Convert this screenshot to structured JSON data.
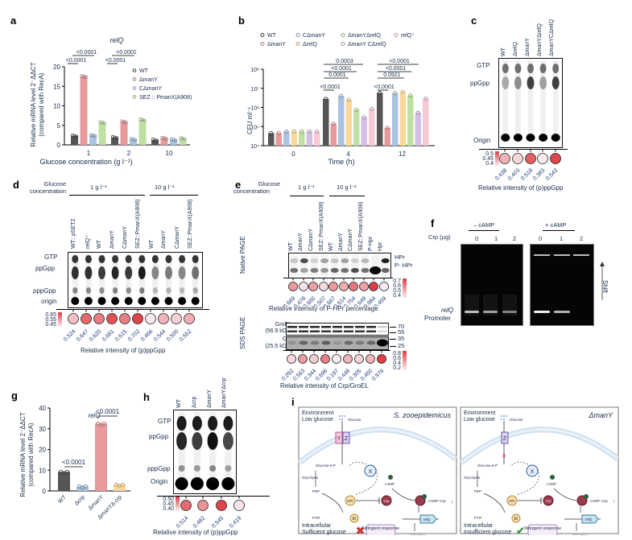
{
  "panels": {
    "a": "a",
    "b": "b",
    "c": "c",
    "d": "d",
    "e": "e",
    "f": "f",
    "g": "g",
    "h": "h",
    "i": "i"
  },
  "chart_data": [
    {
      "id": "a",
      "type": "bar",
      "title": "relQ",
      "xlabel": "Glucose concentration (g l⁻¹)",
      "ylabel": "Relative mRNA level 2⁻ΔΔCT",
      "ylabel2": "(compared with RecA)",
      "ylim": [
        0,
        20
      ],
      "yticks": [
        0,
        5,
        10,
        15,
        20
      ],
      "categories": [
        "1",
        "2",
        "10"
      ],
      "series": [
        {
          "name": "WT",
          "color": "#555555",
          "values": [
            2.3,
            1.9,
            1.2
          ]
        },
        {
          "name": "ΔmanY",
          "color": "#e79a9c",
          "values": [
            17.5,
            5.9,
            1.7
          ]
        },
        {
          "name": "CΔmanY",
          "color": "#a8c4e2",
          "values": [
            2.4,
            1.4,
            1.3
          ]
        },
        {
          "name": "SEZ :: PmanX(A908)",
          "color": "#bfe0a4",
          "values": [
            5.7,
            6.4,
            1.6
          ]
        }
      ],
      "pvalues": [
        "<0.0001",
        "<0.0001",
        "<0.0001",
        "<0.0001"
      ]
    },
    {
      "id": "b",
      "type": "bar",
      "title": "",
      "xlabel": "Time (h)",
      "ylabel": "CFU ml⁻¹",
      "yscale": "log",
      "ylim": [
        10000,
        100000000
      ],
      "yticks": [
        "10⁴",
        "10⁵",
        "10⁶",
        "10⁷",
        "10⁸"
      ],
      "categories": [
        "0",
        "4",
        "12"
      ],
      "series": [
        {
          "name": "WT",
          "color": "#555555",
          "values": [
            45000,
            2800000,
            5800000
          ]
        },
        {
          "name": "ΔmanY",
          "color": "#e79a9c",
          "values": [
            45000,
            140000,
            85000
          ]
        },
        {
          "name": "CΔmanY",
          "color": "#a8c4e2",
          "values": [
            55000,
            4000000,
            5500000
          ]
        },
        {
          "name": "ΔrelQ",
          "color": "#fbd99a",
          "values": [
            55000,
            2500000,
            6500000
          ]
        },
        {
          "name": "ΔmanYΔrelQ",
          "color": "#bfe0a4",
          "values": [
            55000,
            750000,
            4200000
          ]
        },
        {
          "name": "ΔmanY CΔrelQ",
          "color": "#d6bfe6",
          "values": [
            55000,
            300000,
            520000
          ]
        },
        {
          "name": "relQ⁺",
          "color": "#f6c9d4",
          "values": [
            55000,
            850000,
            2900000
          ]
        }
      ],
      "legend_order": [
        "WT",
        "CΔmanY",
        "ΔmanYΔrelQ",
        "relQ⁺",
        "ΔmanY",
        "ΔrelQ",
        "ΔmanY CΔrelQ"
      ],
      "pvalues_4h": [
        "0.0003",
        "<0.0001",
        "0.0001",
        "<0.0001"
      ],
      "pvalues_12h": [
        "<0.0001",
        "<0.0001",
        "0.0921",
        "<0.0001"
      ]
    },
    {
      "id": "g",
      "type": "bar",
      "title": "relQ",
      "ylabel": "Relative mRNA level 2⁻ΔΔCT",
      "ylabel2": "(compared with RecA)",
      "ylim": [
        0,
        40
      ],
      "yticks": [
        0,
        10,
        20,
        30,
        40
      ],
      "categories": [
        "WT",
        "Δcrp",
        "ΔmanY",
        "ΔmanYΔ crp"
      ],
      "colors": [
        "#555555",
        "#a8c4e2",
        "#e79a9c",
        "#fbd99a"
      ],
      "values": [
        9.2,
        2.2,
        32.5,
        3.0
      ],
      "pvalues": [
        "<0.0001",
        "<0.0001"
      ]
    }
  ],
  "panel_c": {
    "lanes": [
      "WT",
      "ΔrelQ",
      "ΔmanY",
      "ΔmanYΔrelQ",
      "ΔmanYCΔrelQ"
    ],
    "bands": [
      "GTP",
      "ppGpp",
      "Origin"
    ],
    "values": [
      "0.438",
      "0.403",
      "0.518",
      "0.383",
      "0.543"
    ],
    "scale": [
      "0.5",
      "0.45",
      "0.4"
    ],
    "caption": "Relative intensity of (p)ppGpp"
  },
  "panel_d": {
    "header_left": "Glucose",
    "header_left2": "concentration",
    "group1": "1 g l⁻¹",
    "group2": "10 g l⁻¹",
    "lanes": [
      "WT:: pSET2",
      "relQ⁺",
      "WT",
      "ΔmanY",
      "CΔmanY",
      "SEZ::PmanX(A908)",
      "WT",
      "ΔmanY",
      "CΔmanY",
      "SEZ::PmanX(A908)"
    ],
    "bands": [
      "GTP",
      "ppGpp",
      "pppGpp",
      "origin"
    ],
    "values": [
      "0.524",
      "0.647",
      "0.620",
      "0.681",
      "0.615",
      "0.702",
      "0.466",
      "0.544",
      "0.500",
      "0.552"
    ],
    "scale": [
      "0.65",
      "0.55",
      "0.45"
    ],
    "caption": "Relative intensity of (p)ppGpp"
  },
  "panel_e": {
    "header_left": "Glucose",
    "header_left2": "concentration",
    "group1": "1 g l⁻¹",
    "group2": "10 g l⁻¹",
    "lanes": [
      "WT",
      "ΔmanY",
      "CΔmanY",
      "SEZ::PmanX(A908)",
      "WT",
      "ΔmanY",
      "CΔmanY",
      "SEZ::PmanX(A908)",
      "P-Hpr",
      "Hpr"
    ],
    "native_label": "Native PAGE",
    "native_bands": [
      "HPr",
      "P- HPr"
    ],
    "native_values": [
      "0.669",
      "0.478",
      "0.650",
      "0.507",
      "0.667",
      "0.614",
      "0.754",
      "0.649",
      "0.984",
      "0.459"
    ],
    "native_scale": [
      "0.7",
      "0.6",
      "0.5",
      "0.4"
    ],
    "native_caption": "Relative intensity of P-HPr percentage",
    "sds_label": "SDS PAGE",
    "sds_bands": [
      "GroEL",
      "(56.9 kDa)",
      "Crp",
      "(25.5 kDa)"
    ],
    "sds_markers": [
      "70",
      "55",
      "35",
      "25"
    ],
    "sds_values": [
      "0.292",
      "0.563",
      "0.344",
      "0.696",
      "0.197",
      "0.448",
      "0.305",
      "0.450",
      "0.976"
    ],
    "sds_scale": [
      "0.8",
      "0.6",
      "0.4",
      "0.2"
    ],
    "sds_caption": "Relative intensity of Crp/GroEL"
  },
  "panel_f": {
    "minus": "– cAMP",
    "plus": "+ cAMP",
    "crp_label": "Crp (µg)",
    "doses": [
      "0",
      "1",
      "2",
      "0",
      "1",
      "2"
    ],
    "band_label1": "relQ",
    "band_label2": "Promoter",
    "shift": "Shift"
  },
  "panel_h": {
    "lanes": [
      "WT",
      "Δcrp",
      "ΔmanY",
      "ΔmanYΔcrp"
    ],
    "bands": [
      "GTP",
      "ppGpp",
      "pppGpp",
      "Origin"
    ],
    "values": [
      "0.514",
      "0.482",
      "0.545",
      "0.419"
    ],
    "scale": [
      "0.50",
      "0.45",
      "0.40"
    ],
    "caption": "Relative intensity of (p)ppGpp"
  },
  "panel_i": {
    "left": {
      "title": "S. zooepidemicus",
      "env1": "Environment",
      "env2": "Low glucose",
      "glucose": "Glucose",
      "transporter": [
        "Y",
        "Z"
      ],
      "g6p": "Glucose-6-P",
      "glycolysis": "Glycolysis",
      "pep": "PEP",
      "pyr": "PYR",
      "x": "X",
      "hpr": "HPr",
      "ei": "EI",
      "camp": "cAMP",
      "crp": "Crp",
      "campcrp": "cAMP–Crp",
      "gene": "relQ",
      "ppgpp": "(p)ppGpp",
      "stringent": "Stringent response",
      "intra1": "Intracellular",
      "intra2": "Sufficient glucose"
    },
    "right": {
      "title": "ΔmanY",
      "env1": "Environment",
      "env2": "Low glucose",
      "glucose": "Glucose",
      "transporter": [
        "Z"
      ],
      "g6p": "Glucose-6-P",
      "glycolysis": "Glycolysis",
      "pep": "PEP",
      "pyr": "PYR",
      "x": "X",
      "hpr": "HPr",
      "ei": "EI",
      "camp": "cAMP",
      "crp": "Crp",
      "campcrp": "cAMP–Crp",
      "gene": "relQ",
      "ppgpp": "(p)ppGpp",
      "stringent": "Stringent response",
      "intra1": "Intracellular",
      "intra2": "Insufficient glucose"
    }
  },
  "colors": {
    "heat_low": "#fbeef1",
    "heat_high": "#dd3e45",
    "text_navy": "#1a2a48"
  }
}
